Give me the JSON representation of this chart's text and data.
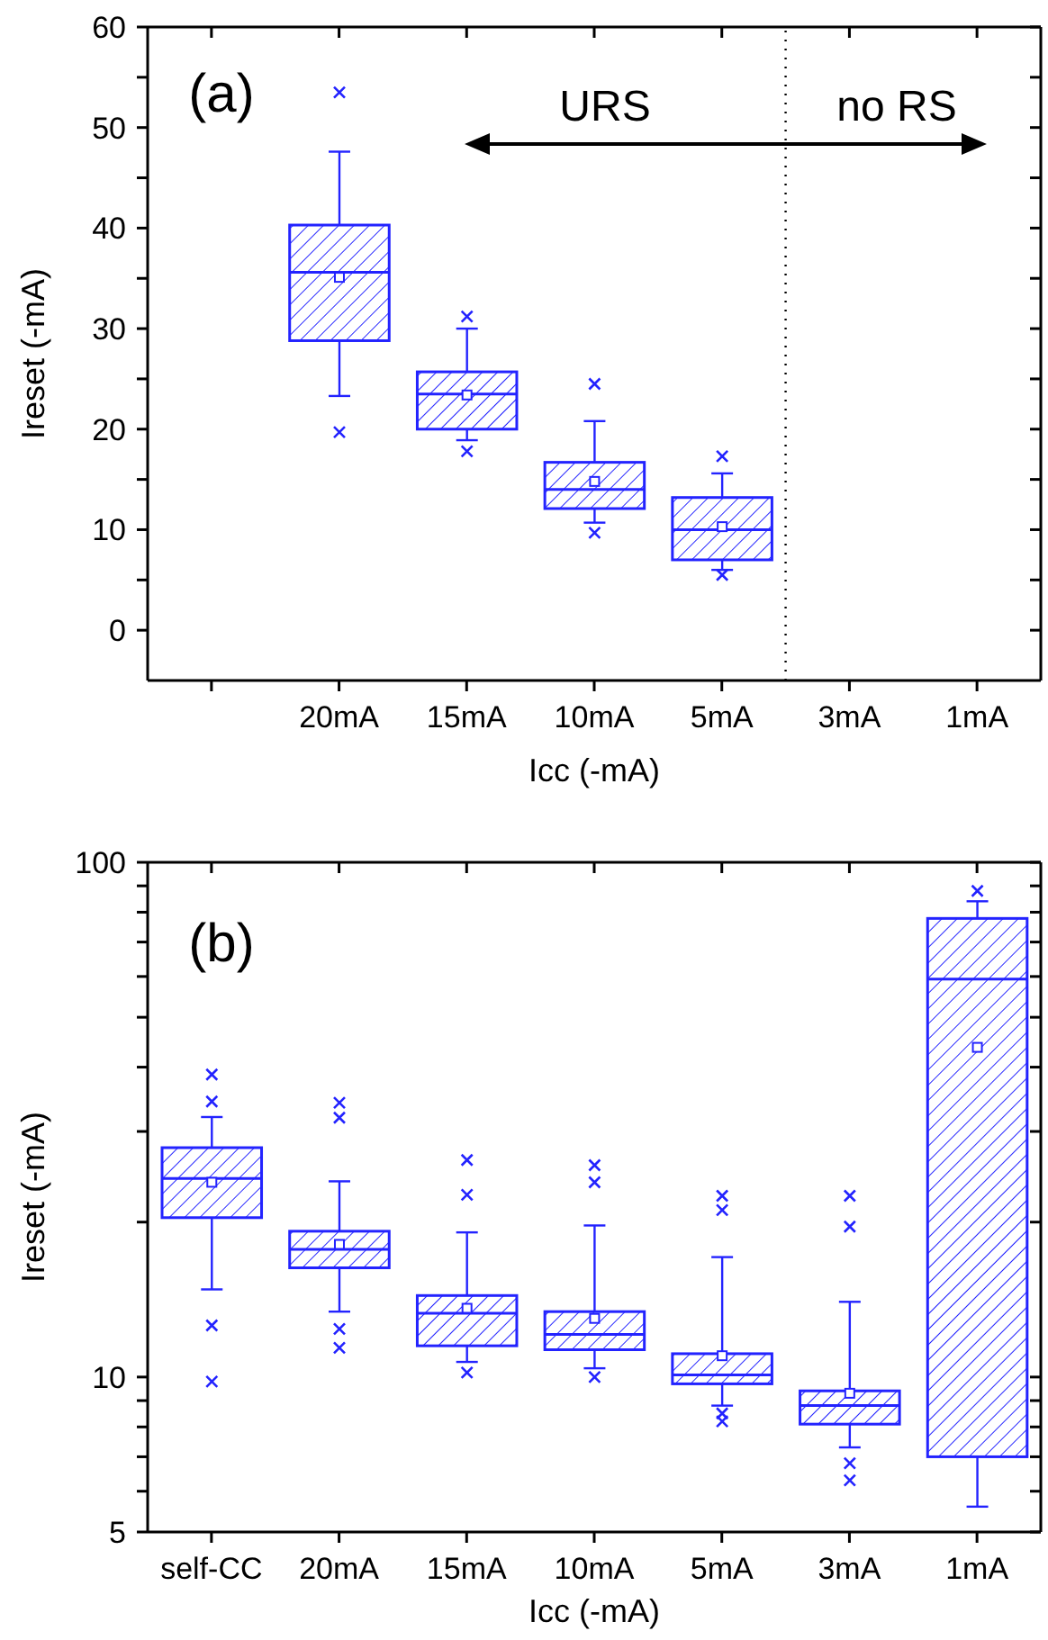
{
  "chart_data": [
    {
      "type": "box",
      "categories": [
        null,
        "20mA",
        "15mA",
        "10mA",
        "5mA",
        "3mA",
        "1mA"
      ],
      "color": "#2323ff",
      "boxes": [
        null,
        {
          "low": 23.3,
          "q1": 28.8,
          "median": 35.6,
          "q3": 40.3,
          "high": 47.6,
          "mean": 35.1,
          "outliers": [
            53.5,
            19.7
          ]
        },
        {
          "low": 18.9,
          "q1": 20.0,
          "median": 23.5,
          "q3": 25.7,
          "high": 30.0,
          "mean": 23.4,
          "outliers": [
            31.2,
            17.8
          ]
        },
        {
          "low": 10.7,
          "q1": 12.1,
          "median": 14.0,
          "q3": 16.7,
          "high": 20.8,
          "mean": 14.8,
          "outliers": [
            24.5,
            9.7
          ]
        },
        {
          "low": 6.0,
          "q1": 7.0,
          "median": 10.0,
          "q3": 13.2,
          "high": 15.6,
          "mean": 10.3,
          "outliers": [
            17.3,
            5.5
          ]
        },
        null,
        null
      ],
      "ylim": [
        -5,
        60
      ],
      "yticks": [
        0,
        {
          "value": 5,
          "label": null
        },
        10,
        {
          "value": 15,
          "label": null
        },
        20,
        {
          "value": 25,
          "label": null
        },
        30,
        {
          "value": 35,
          "label": null
        },
        40,
        {
          "value": 45,
          "label": null
        },
        50,
        {
          "value": 55,
          "label": null
        },
        60
      ],
      "xlabel": "Icc (-mA)",
      "ylabel": "Ireset (-mA)",
      "annotations": [
        "(a)",
        "URS",
        "no RS"
      ]
    },
    {
      "type": "box",
      "categories": [
        "self-CC",
        "20mA",
        "15mA",
        "10mA",
        "5mA",
        "3mA",
        "1mA"
      ],
      "color": "#2323ff",
      "boxes": [
        {
          "low": 14.8,
          "q1": 20.4,
          "median": 24.3,
          "q3": 27.9,
          "high": 32.0,
          "mean": 23.9,
          "outliers": [
            38.7,
            34.3,
            12.6,
            9.8
          ]
        },
        {
          "low": 13.4,
          "q1": 16.3,
          "median": 17.7,
          "q3": 19.2,
          "high": 24.0,
          "mean": 18.1,
          "outliers": [
            34.1,
            31.9,
            12.4,
            11.4
          ]
        },
        {
          "low": 10.7,
          "q1": 11.5,
          "median": 13.3,
          "q3": 14.4,
          "high": 19.1,
          "mean": 13.6,
          "outliers": [
            26.4,
            22.6,
            10.2
          ]
        },
        {
          "low": 10.4,
          "q1": 11.3,
          "median": 12.1,
          "q3": 13.4,
          "high": 19.7,
          "mean": 13.0,
          "outliers": [
            25.8,
            23.9,
            10.0
          ]
        },
        {
          "low": 8.8,
          "q1": 9.7,
          "median": 10.1,
          "q3": 11.1,
          "high": 17.1,
          "mean": 11.0,
          "outliers": [
            22.5,
            21.1,
            8.5,
            8.2
          ]
        },
        {
          "low": 7.3,
          "q1": 8.1,
          "median": 8.8,
          "q3": 9.4,
          "high": 14.0,
          "mean": 9.3,
          "outliers": [
            22.5,
            19.6,
            6.8,
            6.3
          ]
        },
        {
          "low": 5.6,
          "q1": 7.0,
          "median": 59.3,
          "q3": 77.8,
          "high": 84,
          "mean": 43.7,
          "outliers": [
            88
          ]
        }
      ],
      "log": true,
      "ylim": [
        5,
        100
      ],
      "yticks": [
        5,
        {
          "value": 6,
          "label": null
        },
        {
          "value": 7,
          "label": null
        },
        {
          "value": 8,
          "label": null
        },
        {
          "value": 9,
          "label": null
        },
        10,
        {
          "value": 20,
          "label": null
        },
        {
          "value": 30,
          "label": null
        },
        {
          "value": 40,
          "label": null
        },
        {
          "value": 50,
          "label": null
        },
        {
          "value": 60,
          "label": null
        },
        {
          "value": 70,
          "label": null
        },
        {
          "value": 80,
          "label": null
        },
        {
          "value": 90,
          "label": null
        },
        100
      ],
      "xlabel": "Icc (-mA)",
      "ylabel": "Ireset (-mA)",
      "annotations": [
        "(b)"
      ]
    }
  ]
}
